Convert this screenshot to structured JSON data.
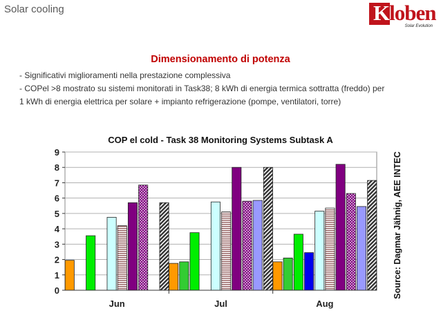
{
  "header": {
    "title": "Solar cooling"
  },
  "logo": {
    "brand_initial": "K",
    "brand_rest": "loben",
    "tagline": "Solar Evolution"
  },
  "slide": {
    "heading": "Dimensionamento di potenza",
    "bullets": [
      "- Significativi miglioramenti nella prestazione complessiva",
      "- COPel >8 mostrato su sistemi monitorati in Task38; 8 kWh di energia termica sottratta (freddo) per",
      "1 kWh di energia elettrica per solare + impianto refrigerazione (pompe, ventilatori, torre)"
    ]
  },
  "chart_data": {
    "type": "bar",
    "title": "COP el cold - Task 38 Monitoring Systems Subtask A",
    "source": "Source: Dagmar Jähnig, AEE INTEC",
    "categories": [
      "Jun",
      "Jul",
      "Aug"
    ],
    "ylim": [
      0,
      9
    ],
    "yticks": [
      0,
      1,
      2,
      3,
      4,
      5,
      6,
      7,
      8,
      9
    ],
    "grid": true,
    "legend": "none",
    "series": [
      {
        "color": "#ff9900",
        "pattern": "solid",
        "values": [
          1.95,
          1.75,
          1.85
        ]
      },
      {
        "color": "#33cc33",
        "pattern": "solid",
        "values": [
          null,
          1.85,
          2.1
        ]
      },
      {
        "color": "#00ee00",
        "pattern": "solid",
        "values": [
          3.55,
          3.75,
          3.65
        ]
      },
      {
        "color": "#0000ee",
        "pattern": "solid",
        "values": [
          null,
          null,
          2.45
        ]
      },
      {
        "color": "#ccffff",
        "pattern": "solid",
        "values": [
          4.75,
          5.75,
          5.15
        ]
      },
      {
        "color": "#996666",
        "pattern": "horizontal-stripes",
        "values": [
          4.2,
          5.1,
          5.35
        ]
      },
      {
        "color": "#800080",
        "pattern": "solid",
        "values": [
          5.7,
          8.0,
          8.2
        ]
      },
      {
        "color": "#cc0099",
        "pattern": "dots",
        "values": [
          6.85,
          5.8,
          6.3
        ]
      },
      {
        "color": "#9999ff",
        "pattern": "solid",
        "values": [
          null,
          5.85,
          5.45
        ]
      },
      {
        "color": "#444444",
        "pattern": "diagonal-stripes",
        "values": [
          5.7,
          8.0,
          7.15
        ]
      }
    ]
  }
}
